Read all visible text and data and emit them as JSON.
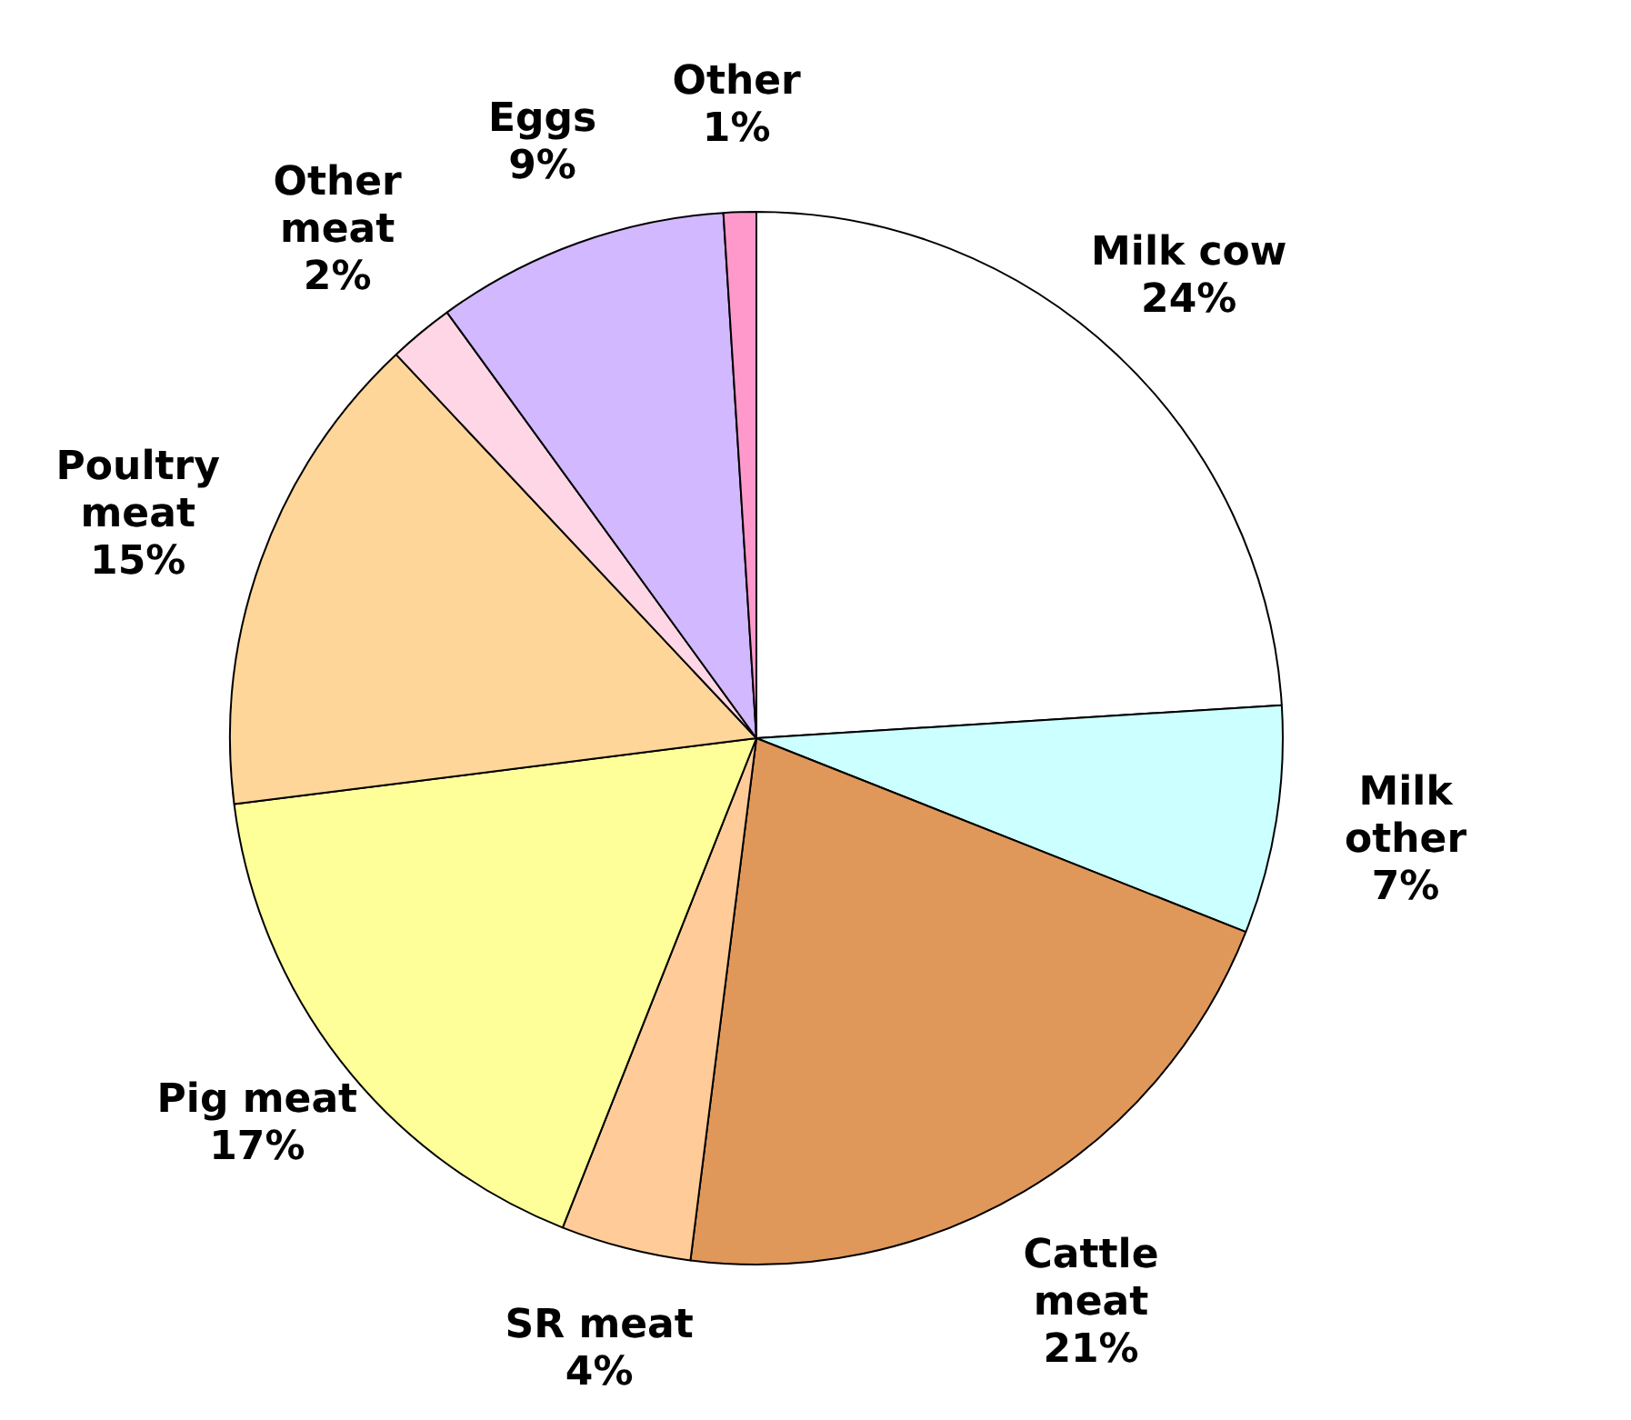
{
  "chart_data": {
    "type": "pie",
    "categories": [
      "Milk cow",
      "Milk other",
      "Cattle meat",
      "SR meat",
      "Pig meat",
      "Poultry meat",
      "Other meat",
      "Eggs",
      "Other"
    ],
    "values": [
      24,
      7,
      21,
      4,
      17,
      15,
      2,
      9,
      1
    ],
    "value_labels": [
      "24%",
      "7%",
      "21%",
      "4%",
      "17%",
      "15%",
      "2%",
      "9%",
      "1%"
    ],
    "colors": [
      "#ffffff",
      "#ccffff",
      "#e0985a",
      "#ffcc99",
      "#ffff99",
      "#ffd699",
      "#ffd6e6",
      "#d2b8ff",
      "#ff99cc"
    ],
    "legend": false
  }
}
